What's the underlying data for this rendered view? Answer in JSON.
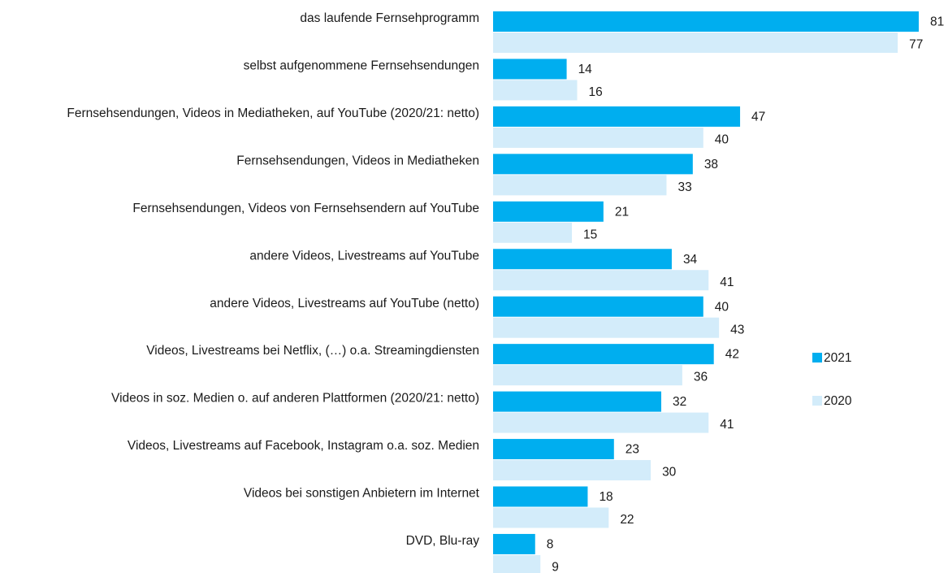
{
  "chart_data": {
    "type": "bar",
    "orientation": "horizontal",
    "categories": [
      "das laufende Fernsehprogramm",
      "selbst aufgenommene Fernsehsendungen",
      "Fernsehsendungen, Videos in Mediatheken, auf YouTube (2020/21: netto)",
      "Fernsehsendungen, Videos in Mediatheken",
      "Fernsehsendungen, Videos von Fernsehsendern auf YouTube",
      "andere Videos, Livestreams auf YouTube",
      "andere Videos, Livestreams auf YouTube (netto)",
      "Videos, Livestreams bei Netflix, (…) o.a. Streamingdiensten",
      "Videos in soz. Medien o. auf anderen Plattformen (2020/21: netto)",
      "Videos, Livestreams auf Facebook, Instagram o.a. soz. Medien",
      "Videos bei sonstigen Anbietern im Internet",
      "DVD, Blu-ray"
    ],
    "series": [
      {
        "name": "2021",
        "color": "#00aeef",
        "values": [
          81,
          14,
          47,
          38,
          21,
          34,
          40,
          42,
          32,
          23,
          18,
          8
        ]
      },
      {
        "name": "2020",
        "color": "#d3ecfa",
        "values": [
          77,
          16,
          40,
          33,
          15,
          41,
          43,
          36,
          41,
          30,
          22,
          9
        ]
      }
    ],
    "legend": "right"
  }
}
